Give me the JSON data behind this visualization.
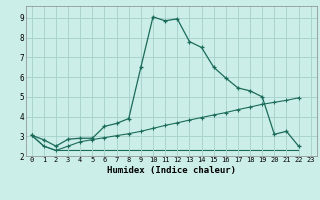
{
  "xlabel": "Humidex (Indice chaleur)",
  "background_color": "#cceee8",
  "line_color": "#1a6b5a",
  "grid_color": "#aad4ce",
  "xlim": [
    -0.5,
    23.5
  ],
  "ylim": [
    2.0,
    9.6
  ],
  "xtick_labels": [
    "0",
    "1",
    "2",
    "3",
    "4",
    "5",
    "6",
    "7",
    "8",
    "9",
    "10",
    "11",
    "12",
    "13",
    "14",
    "15",
    "16",
    "17",
    "18",
    "19",
    "20",
    "21",
    "22",
    "23"
  ],
  "xtick_vals": [
    0,
    1,
    2,
    3,
    4,
    5,
    6,
    7,
    8,
    9,
    10,
    11,
    12,
    13,
    14,
    15,
    16,
    17,
    18,
    19,
    20,
    21,
    22,
    23
  ],
  "yticks": [
    2,
    3,
    4,
    5,
    6,
    7,
    8,
    9
  ],
  "curve1_x": [
    0,
    1,
    2,
    3,
    4,
    5,
    6,
    7,
    8,
    9,
    10,
    11,
    12,
    13,
    14,
    15,
    16,
    17,
    18,
    19,
    20,
    21,
    22
  ],
  "curve1_y": [
    3.05,
    2.82,
    2.5,
    2.85,
    2.9,
    2.9,
    3.5,
    3.65,
    3.9,
    6.5,
    9.05,
    8.85,
    8.95,
    7.8,
    7.5,
    6.5,
    5.95,
    5.45,
    5.3,
    5.0,
    3.1,
    3.25,
    2.5
  ],
  "curve2_x": [
    0,
    1,
    2,
    3,
    4,
    5,
    6,
    7,
    8,
    9,
    10,
    11,
    12,
    13,
    14,
    15,
    16,
    17,
    18,
    19,
    20,
    21,
    22
  ],
  "curve2_y": [
    3.05,
    2.5,
    2.28,
    2.5,
    2.72,
    2.83,
    2.93,
    3.03,
    3.13,
    3.25,
    3.4,
    3.55,
    3.68,
    3.82,
    3.95,
    4.08,
    4.2,
    4.35,
    4.48,
    4.62,
    4.72,
    4.82,
    4.95
  ],
  "curve3_x": [
    0,
    1,
    2,
    3,
    4,
    5,
    6,
    7,
    8,
    9,
    10,
    11,
    12,
    13,
    14,
    15,
    16,
    17,
    18,
    19,
    20,
    21,
    22
  ],
  "curve3_y": [
    3.05,
    2.5,
    2.28,
    2.28,
    2.28,
    2.28,
    2.28,
    2.28,
    2.28,
    2.28,
    2.28,
    2.28,
    2.28,
    2.28,
    2.28,
    2.28,
    2.28,
    2.28,
    2.28,
    2.28,
    2.28,
    2.28,
    2.28
  ]
}
